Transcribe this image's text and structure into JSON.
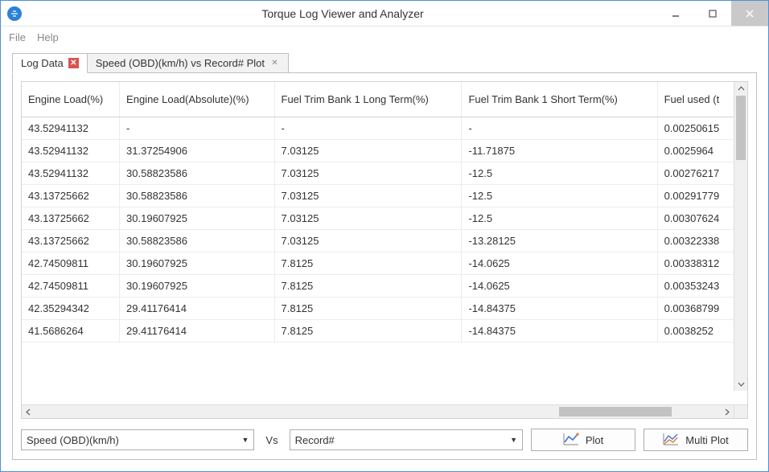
{
  "window": {
    "title": "Torque Log Viewer and Analyzer"
  },
  "menu": {
    "file": "File",
    "help": "Help"
  },
  "tabs": {
    "log_data": "Log Data",
    "speed_plot": "Speed (OBD)(km/h) vs Record# Plot"
  },
  "table": {
    "columns": [
      "Engine Load(%)",
      "Engine Load(Absolute)(%)",
      "Fuel Trim Bank 1 Long Term(%)",
      "Fuel Trim Bank 1 Short Term(%)",
      "Fuel used (t"
    ],
    "rows": [
      [
        "43.52941132",
        "-",
        "-",
        "-",
        "0.00250615"
      ],
      [
        "43.52941132",
        "31.37254906",
        "7.03125",
        "-11.71875",
        "0.0025964"
      ],
      [
        "43.52941132",
        "30.58823586",
        "7.03125",
        "-12.5",
        "0.00276217"
      ],
      [
        "43.13725662",
        "30.58823586",
        "7.03125",
        "-12.5",
        "0.00291779"
      ],
      [
        "43.13725662",
        "30.19607925",
        "7.03125",
        "-12.5",
        "0.00307624"
      ],
      [
        "43.13725662",
        "30.58823586",
        "7.03125",
        "-13.28125",
        "0.00322338"
      ],
      [
        "42.74509811",
        "30.19607925",
        "7.8125",
        "-14.0625",
        "0.00338312"
      ],
      [
        "42.74509811",
        "30.19607925",
        "7.8125",
        "-14.0625",
        "0.00353243"
      ],
      [
        "42.35294342",
        "29.41176414",
        "7.8125",
        "-14.84375",
        "0.00368799"
      ],
      [
        "41.5686264",
        "29.41176414",
        "7.8125",
        "-14.84375",
        "0.0038252"
      ]
    ]
  },
  "plotbar": {
    "y_select": "Speed (OBD)(km/h)",
    "vs": "Vs",
    "x_select": "Record#",
    "plot_btn": "Plot",
    "multi_plot_btn": "Multi Plot"
  },
  "colors": {
    "window_border": "#4a90d9",
    "divider": "#d4d4d4",
    "scrollbar_thumb": "#c2c2c2",
    "close_btn_bg": "#c9c9c9",
    "tab_close_active": "#d9534f",
    "plot_icon_line": "#4a6fd4",
    "plot_icon_accent": "#e07b2e"
  }
}
